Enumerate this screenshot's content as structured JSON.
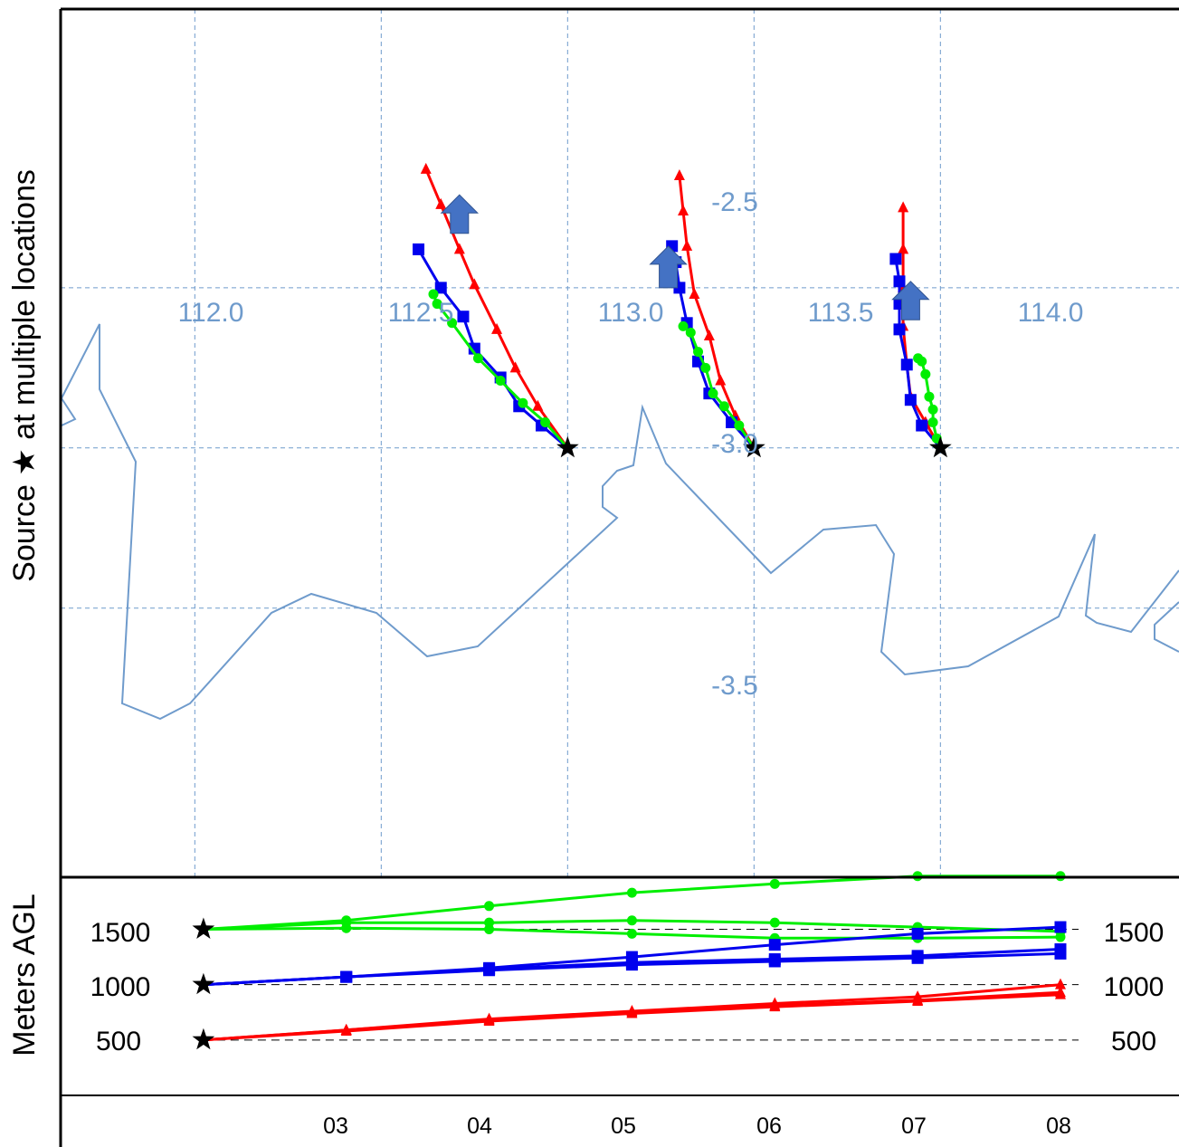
{
  "map_panel": {
    "ylabel": "Source ★   at multiple locations",
    "longitude_labels": [
      "112.0",
      "112.5",
      "113.0",
      "113.5",
      "114.0"
    ],
    "latitude_labels": [
      "-2.5",
      "-3.0",
      "-3.5"
    ]
  },
  "height_panel": {
    "ylabel": "Meters AGL",
    "left_tick_labels": [
      "1500",
      "1000",
      "500"
    ],
    "right_tick_labels": [
      "1500",
      "1000",
      "500"
    ],
    "x_tick_labels": [
      "03",
      "04",
      "05",
      "06",
      "07",
      "08"
    ]
  },
  "colors": {
    "red": "#ff0000",
    "blue": "#0000ee",
    "green": "#00ee00",
    "arrow": "#4472c4",
    "grid": "#6f9bcc",
    "coast": "#6f9bcc"
  },
  "chart_data": [
    {
      "type": "line",
      "name": "trajectory-map",
      "xlim": [
        111.64,
        114.64
      ],
      "ylim": [
        -4.34,
        -1.63
      ],
      "grid": true,
      "x_ticks": [
        112.0,
        112.5,
        113.0,
        113.5,
        114.0
      ],
      "y_ticks": [
        -2.5,
        -3.0,
        -3.5
      ],
      "sources": [
        {
          "lon": 113.0,
          "lat": -3.0
        },
        {
          "lon": 113.5,
          "lat": -3.0
        },
        {
          "lon": 114.0,
          "lat": -3.0
        }
      ],
      "series": [
        {
          "color": "red",
          "marker": "triangle",
          "x": [
            113.0,
            112.92,
            112.86,
            112.81,
            112.75,
            112.71,
            112.66,
            112.62
          ],
          "y": [
            -3.0,
            -2.87,
            -2.75,
            -2.63,
            -2.49,
            -2.38,
            -2.24,
            -2.13
          ]
        },
        {
          "color": "blue",
          "marker": "square",
          "x": [
            113.0,
            112.93,
            112.87,
            112.82,
            112.75,
            112.72,
            112.66,
            112.6
          ],
          "y": [
            -3.0,
            -2.93,
            -2.87,
            -2.78,
            -2.69,
            -2.59,
            -2.5,
            -2.38
          ]
        },
        {
          "color": "green",
          "marker": "circle",
          "x": [
            113.0,
            112.94,
            112.88,
            112.82,
            112.76,
            112.69,
            112.65,
            112.64
          ],
          "y": [
            -3.0,
            -2.92,
            -2.86,
            -2.79,
            -2.72,
            -2.61,
            -2.55,
            -2.52
          ]
        },
        {
          "color": "red",
          "marker": "triangle",
          "x": [
            113.5,
            113.45,
            113.41,
            113.38,
            113.34,
            113.32,
            113.31,
            113.3
          ],
          "y": [
            -3.0,
            -2.9,
            -2.79,
            -2.65,
            -2.52,
            -2.37,
            -2.26,
            -2.15
          ]
        },
        {
          "color": "blue",
          "marker": "square",
          "x": [
            113.5,
            113.44,
            113.38,
            113.35,
            113.32,
            113.3,
            113.29,
            113.28
          ],
          "y": [
            -3.0,
            -2.92,
            -2.83,
            -2.73,
            -2.61,
            -2.5,
            -2.42,
            -2.37
          ]
        },
        {
          "color": "green",
          "marker": "circle",
          "x": [
            113.5,
            113.46,
            113.42,
            113.39,
            113.37,
            113.35,
            113.33,
            113.31
          ],
          "y": [
            -3.0,
            -2.93,
            -2.87,
            -2.83,
            -2.75,
            -2.7,
            -2.64,
            -2.62
          ]
        },
        {
          "color": "red",
          "marker": "triangle",
          "x": [
            114.0,
            113.96,
            113.92,
            113.91,
            113.9,
            113.9,
            113.9,
            113.9
          ],
          "y": [
            -3.0,
            -2.92,
            -2.84,
            -2.74,
            -2.62,
            -2.5,
            -2.38,
            -2.25
          ]
        },
        {
          "color": "blue",
          "marker": "square",
          "x": [
            114.0,
            113.95,
            113.92,
            113.91,
            113.89,
            113.89,
            113.89,
            113.88
          ],
          "y": [
            -3.0,
            -2.93,
            -2.85,
            -2.74,
            -2.63,
            -2.55,
            -2.48,
            -2.41
          ]
        },
        {
          "color": "green",
          "marker": "circle",
          "x": [
            114.0,
            113.99,
            113.98,
            113.98,
            113.97,
            113.96,
            113.95,
            113.94
          ],
          "y": [
            -3.0,
            -2.97,
            -2.92,
            -2.88,
            -2.84,
            -2.77,
            -2.73,
            -2.72
          ]
        }
      ],
      "arrows": [
        {
          "lon": 112.71,
          "lat_base": -2.33,
          "lat_tip": -2.21
        },
        {
          "lon": 113.27,
          "lat_base": -2.5,
          "lat_tip": -2.37
        },
        {
          "lon": 113.92,
          "lat_base": -2.6,
          "lat_tip": -2.48
        }
      ]
    },
    {
      "type": "line",
      "name": "height-profile",
      "xlim": [
        1.0,
        8.83
      ],
      "ylim": [
        0,
        1970
      ],
      "grid": false,
      "x_ticks": [
        3,
        4,
        5,
        6,
        7,
        8
      ],
      "y_ticks": [
        500,
        1000,
        1500
      ],
      "x": [
        2,
        3,
        4,
        5,
        6,
        7,
        8
      ],
      "series": [
        {
          "color": "green",
          "marker": "circle",
          "values": [
            1500,
            1580,
            1710,
            1830,
            1910,
            1980,
            1980
          ]
        },
        {
          "color": "green",
          "marker": "circle",
          "values": [
            1500,
            1560,
            1560,
            1580,
            1560,
            1520,
            1480
          ]
        },
        {
          "color": "green",
          "marker": "circle",
          "values": [
            1500,
            1510,
            1500,
            1460,
            1420,
            1420,
            1430
          ]
        },
        {
          "color": "blue",
          "marker": "square",
          "values": [
            1000,
            1070,
            1150,
            1250,
            1360,
            1460,
            1520
          ]
        },
        {
          "color": "blue",
          "marker": "square",
          "values": [
            1000,
            1070,
            1140,
            1200,
            1230,
            1260,
            1320
          ]
        },
        {
          "color": "blue",
          "marker": "square",
          "values": [
            1000,
            1070,
            1130,
            1180,
            1210,
            1240,
            1280
          ]
        },
        {
          "color": "red",
          "marker": "triangle",
          "values": [
            500,
            590,
            690,
            760,
            830,
            890,
            1000
          ]
        },
        {
          "color": "red",
          "marker": "triangle",
          "values": [
            500,
            590,
            680,
            750,
            810,
            860,
            930
          ]
        },
        {
          "color": "red",
          "marker": "triangle",
          "values": [
            500,
            580,
            670,
            740,
            800,
            850,
            910
          ]
        }
      ]
    }
  ]
}
